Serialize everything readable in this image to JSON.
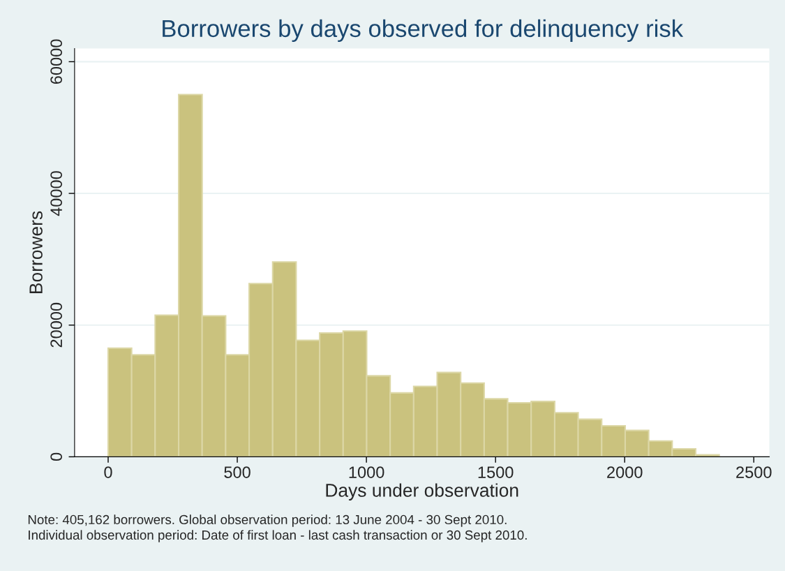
{
  "chart_data": {
    "type": "histogram",
    "title": "Borrowers by days observed for delinquency risk",
    "xlabel": "Days under observation",
    "ylabel": "Borrowers",
    "bins": [
      0,
      91,
      182,
      273,
      364,
      455,
      546,
      637,
      728,
      819,
      910,
      1001,
      1092,
      1183,
      1274,
      1365,
      1456,
      1547,
      1638,
      1729,
      1820,
      1911,
      2002,
      2093,
      2184,
      2275,
      2366
    ],
    "values": [
      16500,
      15500,
      21500,
      55000,
      21400,
      15500,
      26300,
      29600,
      17700,
      18800,
      19100,
      12300,
      9700,
      10700,
      12800,
      11200,
      8800,
      8200,
      8400,
      6700,
      5700,
      4700,
      4000,
      2400,
      1200,
      300
    ],
    "color": "#cac27e",
    "xlim": [
      -130,
      2560
    ],
    "ylim": [
      0,
      62000
    ],
    "xticks": [
      0,
      500,
      1000,
      1500,
      2000,
      2500
    ],
    "yticks": [
      0,
      20000,
      40000,
      60000
    ],
    "grid": "y",
    "annotations": [
      "Note: 405,162 borrowers. Global observation period: 13 June 2004 - 30 Sept 2010.",
      "Individual observation period: Date of first loan - last cash transaction or 30 Sept 2010."
    ]
  }
}
